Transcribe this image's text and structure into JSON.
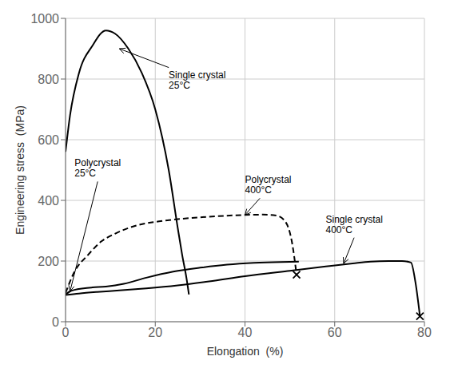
{
  "chart_data": {
    "type": "line",
    "xlabel": "Elongation  (%)",
    "ylabel": "Engineering stress  (MPa)",
    "xlim": [
      0,
      80
    ],
    "ylim": [
      0,
      1000
    ],
    "xticks": [
      0,
      20,
      40,
      60,
      80
    ],
    "yticks": [
      0,
      200,
      400,
      600,
      800,
      1000
    ],
    "grid": true,
    "series": [
      {
        "type": "line",
        "x": [
          0,
          1,
          3,
          6,
          9,
          11,
          14,
          17,
          20,
          23,
          25,
          26,
          27,
          27.5
        ],
        "values": [
          560,
          680,
          820,
          910,
          960,
          950,
          900,
          820,
          700,
          500,
          310,
          220,
          140,
          90
        ],
        "color": "#000000",
        "line_style": "solid"
      },
      {
        "type": "line",
        "x": [
          0,
          1,
          2,
          4,
          6,
          9,
          13,
          18,
          24,
          30,
          36,
          42,
          48,
          52
        ],
        "values": [
          90,
          100,
          105,
          110,
          113,
          116,
          125,
          145,
          165,
          178,
          188,
          194,
          197,
          198
        ],
        "color": "#000000",
        "line_style": "solid"
      },
      {
        "type": "line",
        "x": [
          0,
          2,
          5,
          8,
          11,
          16,
          22,
          28,
          34,
          40,
          44,
          47,
          49,
          50.5,
          51.5
        ],
        "values": [
          95,
          165,
          220,
          265,
          290,
          318,
          333,
          342,
          348,
          352,
          353,
          350,
          330,
          260,
          155
        ],
        "color": "#000000",
        "line_style": "dashed"
      },
      {
        "type": "scatter",
        "marker": "x",
        "x": [
          51.5
        ],
        "values": [
          155
        ],
        "color": "#000000"
      },
      {
        "type": "line",
        "x": [
          0,
          3,
          7,
          12,
          18,
          25,
          32,
          40,
          50,
          58,
          64,
          68,
          72,
          75,
          77,
          78,
          79
        ],
        "values": [
          88,
          93,
          98,
          103,
          110,
          120,
          133,
          150,
          168,
          182,
          192,
          198,
          200,
          200,
          195,
          130,
          18
        ],
        "color": "#000000",
        "line_style": "solid"
      },
      {
        "type": "scatter",
        "marker": "x",
        "x": [
          79
        ],
        "values": [
          18
        ],
        "color": "#000000"
      }
    ],
    "annotations": [
      {
        "text": "Single crystal\n25°C",
        "xy": [
          12,
          900
        ],
        "xytext": [
          23,
          830
        ]
      },
      {
        "text": "Polycrystal\n25°C",
        "xy": [
          1,
          100
        ],
        "xytext": [
          2,
          470
        ]
      },
      {
        "text": "Polycrystal\n400°C",
        "xy": [
          40,
          352
        ],
        "xytext": [
          40,
          415
        ]
      },
      {
        "text": "Single crystal\n400°C",
        "xy": [
          62,
          192
        ],
        "xytext": [
          58,
          285
        ]
      }
    ]
  }
}
